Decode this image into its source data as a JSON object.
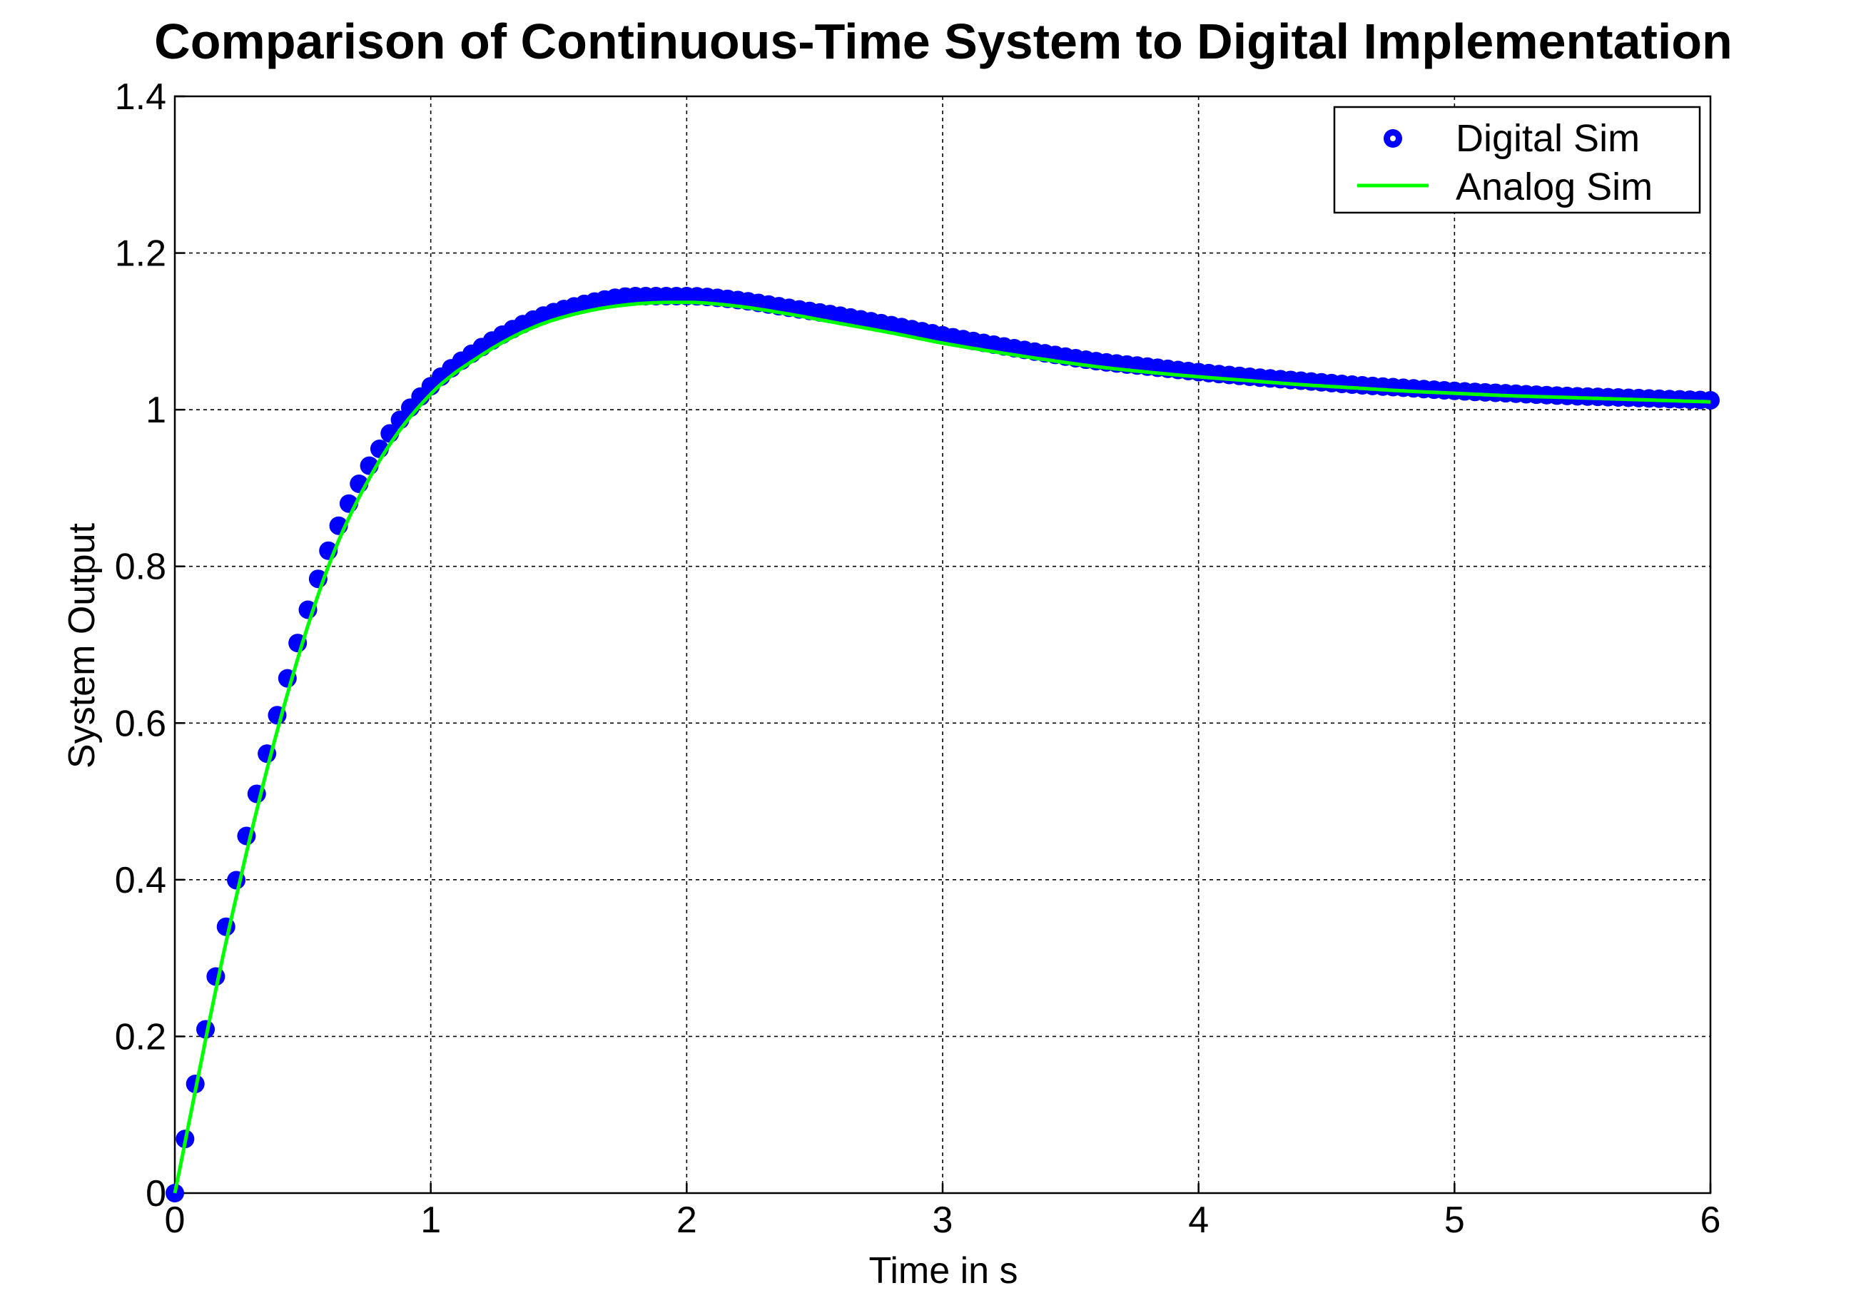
{
  "chart_data": {
    "type": "line",
    "title": "Comparison of Continuous-Time System to Digital Implementation",
    "xlabel": "Time in s",
    "ylabel": "System Output",
    "xlim": [
      0,
      6
    ],
    "ylim": [
      0,
      1.4
    ],
    "xticks": [
      0,
      1,
      2,
      3,
      4,
      5,
      6
    ],
    "xtick_labels": [
      "0",
      "1",
      "2",
      "3",
      "4",
      "5",
      "6"
    ],
    "yticks": [
      0,
      0.2,
      0.4,
      0.6,
      0.8,
      1,
      1.2,
      1.4
    ],
    "ytick_labels": [
      "0",
      "0.2",
      "0.4",
      "0.6",
      "0.8",
      "1",
      "1.2",
      "1.4"
    ],
    "grid": true,
    "legend_position": "top-right",
    "series": [
      {
        "name": "Digital Sim",
        "style": "markers",
        "color": "#0000ff",
        "x": [
          0,
          0.2,
          0.4,
          0.6,
          0.8,
          1.0,
          1.2,
          1.4,
          1.6,
          1.8,
          2.0,
          2.2,
          2.4,
          2.6,
          2.8,
          3.0,
          3.2,
          3.4,
          3.6,
          3.8,
          4.0,
          4.2,
          4.4,
          4.6,
          4.8,
          5.0,
          5.2,
          5.4,
          5.6,
          5.8,
          6.0
        ],
        "y": [
          0,
          0.34,
          0.61,
          0.82,
          0.95,
          1.03,
          1.08,
          1.115,
          1.135,
          1.145,
          1.145,
          1.14,
          1.13,
          1.12,
          1.108,
          1.095,
          1.083,
          1.072,
          1.062,
          1.055,
          1.048,
          1.042,
          1.037,
          1.032,
          1.028,
          1.024,
          1.021,
          1.018,
          1.016,
          1.014,
          1.012
        ]
      },
      {
        "name": "Analog Sim",
        "style": "line",
        "color": "#00ff00",
        "x": [
          0,
          0.2,
          0.4,
          0.6,
          0.8,
          1.0,
          1.2,
          1.4,
          1.6,
          1.8,
          2.0,
          2.2,
          2.4,
          2.6,
          2.8,
          3.0,
          3.2,
          3.4,
          3.6,
          3.8,
          4.0,
          4.2,
          4.4,
          4.6,
          4.8,
          5.0,
          5.2,
          5.4,
          5.6,
          5.8,
          6.0
        ],
        "y": [
          0,
          0.32,
          0.59,
          0.8,
          0.935,
          1.02,
          1.07,
          1.105,
          1.125,
          1.135,
          1.137,
          1.132,
          1.122,
          1.11,
          1.098,
          1.085,
          1.074,
          1.064,
          1.055,
          1.048,
          1.042,
          1.037,
          1.032,
          1.028,
          1.024,
          1.021,
          1.018,
          1.016,
          1.014,
          1.012,
          1.01
        ]
      }
    ]
  }
}
